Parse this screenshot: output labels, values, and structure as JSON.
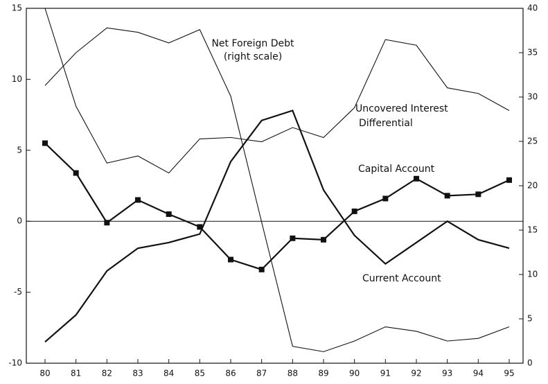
{
  "chart_data": {
    "type": "line",
    "categories": [
      "80",
      "81",
      "82",
      "83",
      "84",
      "85",
      "86",
      "87",
      "88",
      "89",
      "90",
      "91",
      "92",
      "93",
      "94",
      "95"
    ],
    "ylim": [
      -10,
      15
    ],
    "yticks": [
      -10,
      -5,
      0,
      5,
      10,
      15
    ],
    "y2lim": [
      0,
      40
    ],
    "y2ticks": [
      0,
      5,
      10,
      15,
      20,
      25,
      30,
      35,
      40
    ],
    "zero_line": true,
    "series": [
      {
        "color": "#111",
        "style": "thick",
        "marker": "square",
        "values": [
          5.5,
          3.4,
          -0.1,
          1.5,
          0.5,
          -0.4,
          -2.7,
          -3.4,
          -1.2,
          -1.3,
          0.7,
          1.6,
          3.0,
          1.8,
          1.9,
          2.9
        ]
      },
      {
        "color": "#111",
        "style": "thick",
        "values": [
          -8.5,
          -6.6,
          -3.5,
          -1.9,
          -1.5,
          -0.9,
          4.2,
          7.1,
          7.8,
          2.2,
          -1.0,
          -3.0,
          -1.5,
          0,
          -1.3,
          -1.9
        ]
      },
      {
        "color": "#111",
        "style": "thin",
        "values": [
          15,
          8.1,
          4.1,
          4.6,
          3.4,
          5.8,
          5.9,
          5.6,
          6.6,
          5.9,
          8.0,
          12.8,
          12.4,
          9.4,
          9.0,
          7.8
        ]
      },
      {
        "color": "#111",
        "style": "thin",
        "axis": "y2",
        "values": [
          31.3,
          35.0,
          37.8,
          37.3,
          36.1,
          37.6,
          30.1,
          15.9,
          1.9,
          1.3,
          2.5,
          4.1,
          3.6,
          2.5,
          2.8,
          4.1
        ]
      }
    ],
    "annotations": [
      "Net Foreign Debt",
      "(right scale)",
      "Uncovered Interest",
      "Differential",
      "Capital Account",
      "Current Account"
    ]
  }
}
